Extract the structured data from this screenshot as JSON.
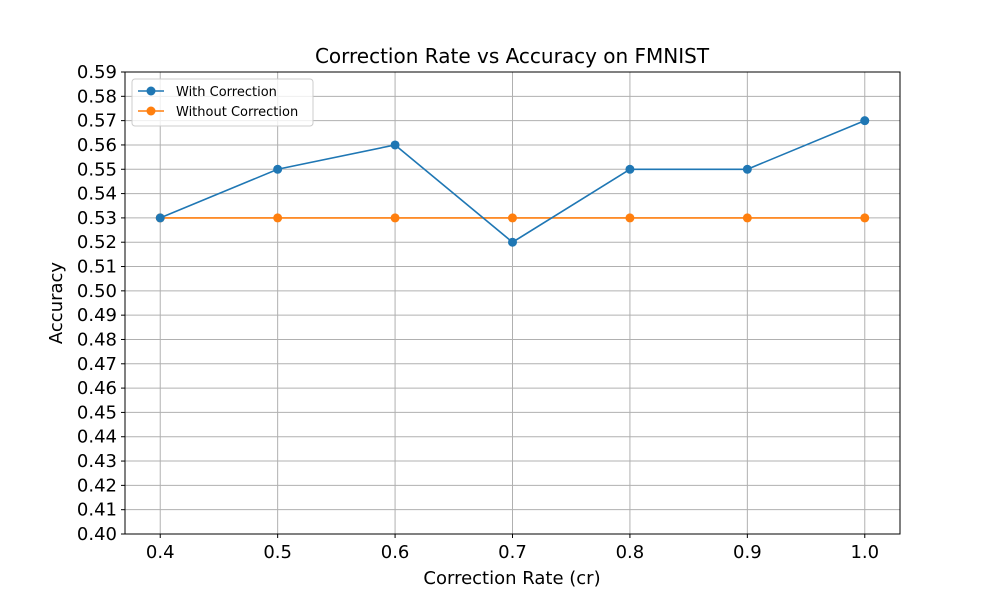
{
  "chart_data": {
    "type": "line",
    "title": "Correction Rate vs Accuracy on FMNIST",
    "xlabel": "Correction Rate (cr)",
    "ylabel": "Accuracy",
    "x": [
      0.4,
      0.5,
      0.6,
      0.7,
      0.8,
      0.9,
      1.0
    ],
    "x_tick_labels": [
      "0.4",
      "0.5",
      "0.6",
      "0.7",
      "0.8",
      "0.9",
      "1.0"
    ],
    "y_tick_labels": [
      "0.40",
      "0.41",
      "0.42",
      "0.43",
      "0.44",
      "0.45",
      "0.46",
      "0.47",
      "0.48",
      "0.49",
      "0.50",
      "0.51",
      "0.52",
      "0.53",
      "0.54",
      "0.55",
      "0.56",
      "0.57",
      "0.58",
      "0.59"
    ],
    "xlim": [
      0.37,
      1.03
    ],
    "ylim": [
      0.4,
      0.59
    ],
    "grid": true,
    "legend_position": "top-left",
    "series": [
      {
        "name": "With Correction",
        "color": "#1f77b4",
        "marker": "circle",
        "values": [
          0.53,
          0.55,
          0.56,
          0.52,
          0.55,
          0.55,
          0.57
        ]
      },
      {
        "name": "Without Correction",
        "color": "#ff7f0e",
        "marker": "circle",
        "values": [
          0.53,
          0.53,
          0.53,
          0.53,
          0.53,
          0.53,
          0.53
        ]
      }
    ]
  }
}
